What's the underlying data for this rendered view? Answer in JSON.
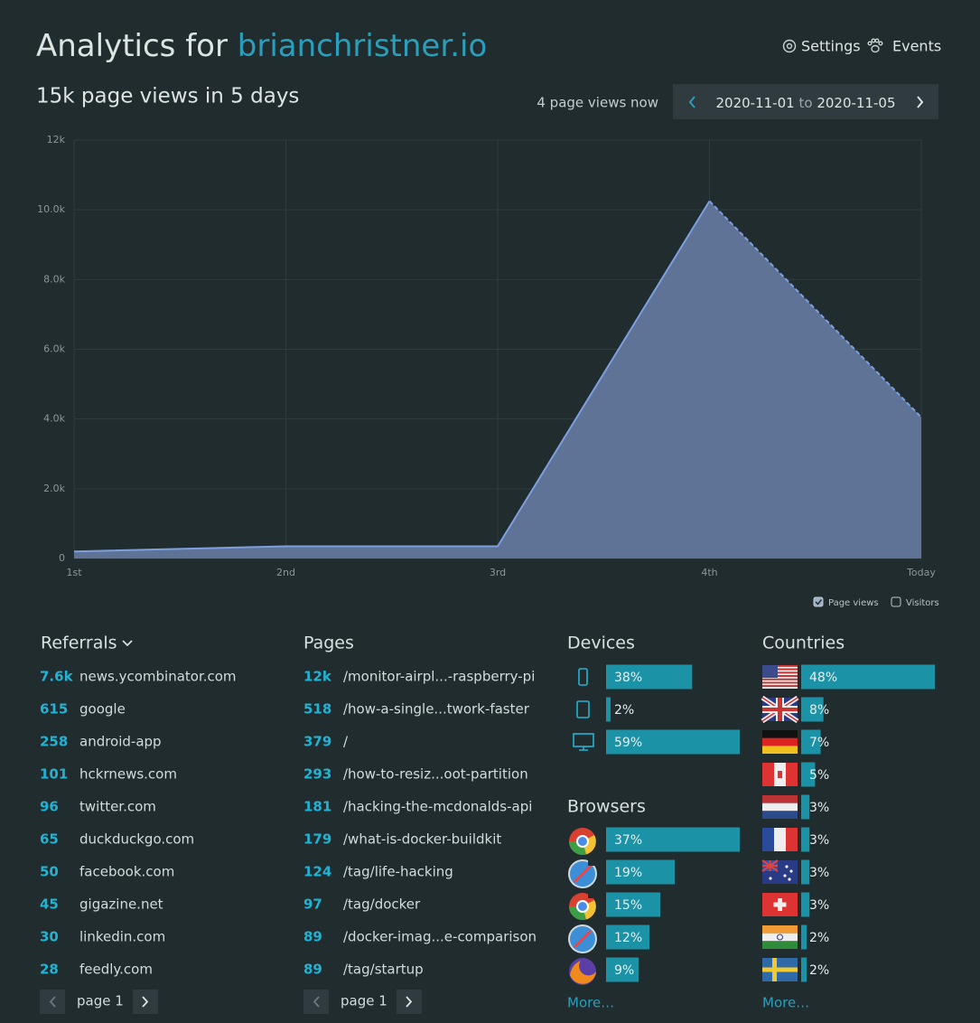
{
  "header": {
    "title": "Analytics for",
    "site": "brianchristner.io",
    "settings": "Settings",
    "events": "Events"
  },
  "summary": {
    "headline": "15k page views in 5 days",
    "now": "4 page views now",
    "range_start": "2020-11-01",
    "range_word": "to",
    "range_end": "2020-11-05"
  },
  "chart": {
    "type": "area",
    "categories": [
      "1st",
      "2nd",
      "3rd",
      "4th",
      "Today"
    ],
    "series": [
      {
        "name": "Page views",
        "color": "#5f7397",
        "values": [
          200,
          350,
          350,
          10250,
          4050
        ]
      }
    ],
    "ylim": [
      0,
      12000
    ],
    "yticks": [
      0,
      {
        "value": 2000,
        "label": "2.0k"
      },
      {
        "value": 4000,
        "label": "4.0k"
      },
      {
        "value": 6000,
        "label": "6.0k"
      },
      {
        "value": 8000,
        "label": "8.0k"
      },
      {
        "value": 10000,
        "label": "10.0k"
      },
      {
        "value": 12000,
        "label": "12k"
      }
    ],
    "grid": true,
    "legend": [
      {
        "name": "Page views",
        "checked": true
      },
      {
        "name": "Visitors",
        "checked": false
      }
    ]
  },
  "referrals": {
    "title": "Referrals",
    "pager": "page 1",
    "rows": [
      {
        "count": "7.6k",
        "label": "news.ycombinator.com"
      },
      {
        "count": 615,
        "label": "google"
      },
      {
        "count": 258,
        "label": "android-app"
      },
      {
        "count": 101,
        "label": "hckrnews.com"
      },
      {
        "count": 96,
        "label": "twitter.com"
      },
      {
        "count": 65,
        "label": "duckduckgo.com"
      },
      {
        "count": 50,
        "label": "facebook.com"
      },
      {
        "count": 45,
        "label": "gigazine.net"
      },
      {
        "count": 30,
        "label": "linkedin.com"
      },
      {
        "count": 28,
        "label": "feedly.com"
      }
    ]
  },
  "pages": {
    "title": "Pages",
    "pager": "page 1",
    "rows": [
      {
        "count": "12k",
        "label": "/monitor-airpl...-raspberry-pi"
      },
      {
        "count": 518,
        "label": "/how-a-single...twork-faster"
      },
      {
        "count": 379,
        "label": "/"
      },
      {
        "count": 293,
        "label": "/how-to-resiz...oot-partition"
      },
      {
        "count": 181,
        "label": "/hacking-the-mcdonalds-api"
      },
      {
        "count": 179,
        "label": "/what-is-docker-buildkit"
      },
      {
        "count": 124,
        "label": "/tag/life-hacking"
      },
      {
        "count": 97,
        "label": "/tag/docker"
      },
      {
        "count": 89,
        "label": "/docker-imag...e-comparison"
      },
      {
        "count": 89,
        "label": "/tag/startup"
      }
    ]
  },
  "devices": {
    "title": "Devices",
    "values": [
      38,
      2,
      59
    ],
    "value_labels": [
      "38%",
      "2%",
      "59%"
    ]
  },
  "browsers": {
    "title": "Browsers",
    "values": [
      37,
      19,
      15,
      12,
      9
    ],
    "value_labels": [
      "37%",
      "19%",
      "15%",
      "12%",
      "9%"
    ],
    "more": "More…"
  },
  "countries": {
    "title": "Countries",
    "values": [
      48,
      8,
      7,
      5,
      3,
      3,
      3,
      3,
      2,
      2
    ],
    "value_labels": [
      "48%",
      "8%",
      "7%",
      "5%",
      "3%",
      "3%",
      "3%",
      "3%",
      "2%",
      "2%"
    ],
    "more": "More…"
  }
}
